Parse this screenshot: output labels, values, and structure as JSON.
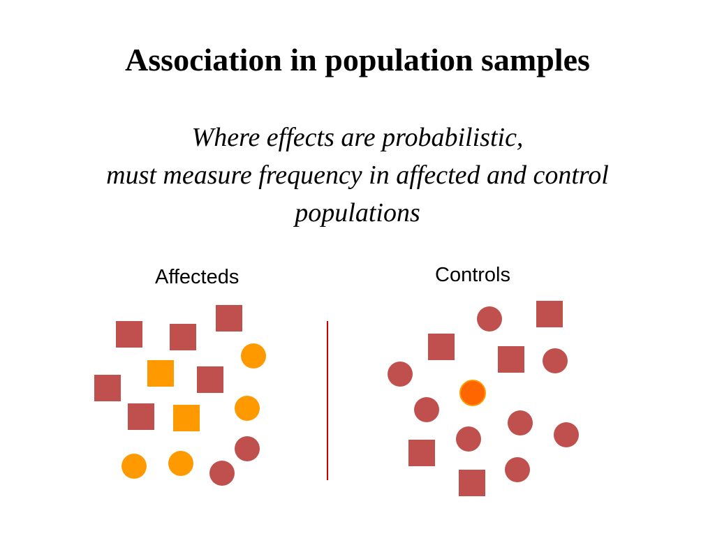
{
  "slide": {
    "title": "Association in population samples",
    "subtitle_lines": [
      "Where effects are probabilistic,",
      "must measure frequency in affected and control",
      "populations"
    ]
  },
  "groups": {
    "affected_label": "Affecteds",
    "controls_label": "Controls"
  },
  "colors": {
    "red_shape": "#c0504d",
    "orange_shape": "#ff9900",
    "highlight_orange": "#ff6600",
    "divider": "#cc0000"
  }
}
